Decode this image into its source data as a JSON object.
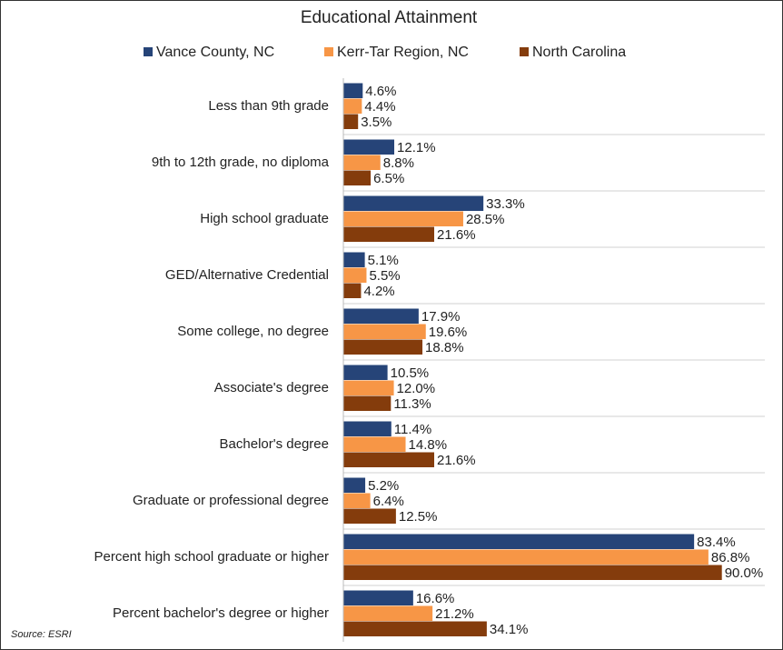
{
  "chart_data": {
    "type": "hbar",
    "title": "Educational Attainment",
    "source": "Source: ESRI",
    "categories": [
      "Less than 9th grade",
      "9th to 12th grade, no diploma",
      "High school graduate",
      "GED/Alternative Credential",
      "Some college, no degree",
      "Associate's degree",
      "Bachelor's degree",
      "Graduate or professional degree",
      "Percent high school graduate or higher",
      "Percent bachelor's degree or higher"
    ],
    "xlim": [
      0,
      100
    ],
    "series": [
      {
        "name": "Vance County, NC",
        "color": "#264478",
        "values": [
          4.6,
          12.1,
          33.3,
          5.1,
          17.9,
          10.5,
          11.4,
          5.2,
          83.4,
          16.6
        ],
        "value_labels": [
          "4.6%",
          "12.1%",
          "33.3%",
          "5.1%",
          "17.9%",
          "10.5%",
          "11.4%",
          "5.2%",
          "83.4%",
          "16.6%"
        ]
      },
      {
        "name": "Kerr-Tar Region, NC",
        "color": "#f79646",
        "values": [
          4.4,
          8.8,
          28.5,
          5.5,
          19.6,
          12.0,
          14.8,
          6.4,
          86.8,
          21.2
        ],
        "value_labels": [
          "4.4%",
          "8.8%",
          "28.5%",
          "5.5%",
          "19.6%",
          "12.0%",
          "14.8%",
          "6.4%",
          "86.8%",
          "21.2%"
        ]
      },
      {
        "name": "North Carolina",
        "color": "#843c0c",
        "values": [
          3.5,
          6.5,
          21.6,
          4.2,
          18.8,
          11.3,
          21.6,
          12.5,
          90.0,
          34.1
        ],
        "value_labels": [
          "3.5%",
          "6.5%",
          "21.6%",
          "4.2%",
          "18.8%",
          "11.3%",
          "21.6%",
          "12.5%",
          "90.0%",
          "34.1%"
        ]
      }
    ]
  }
}
